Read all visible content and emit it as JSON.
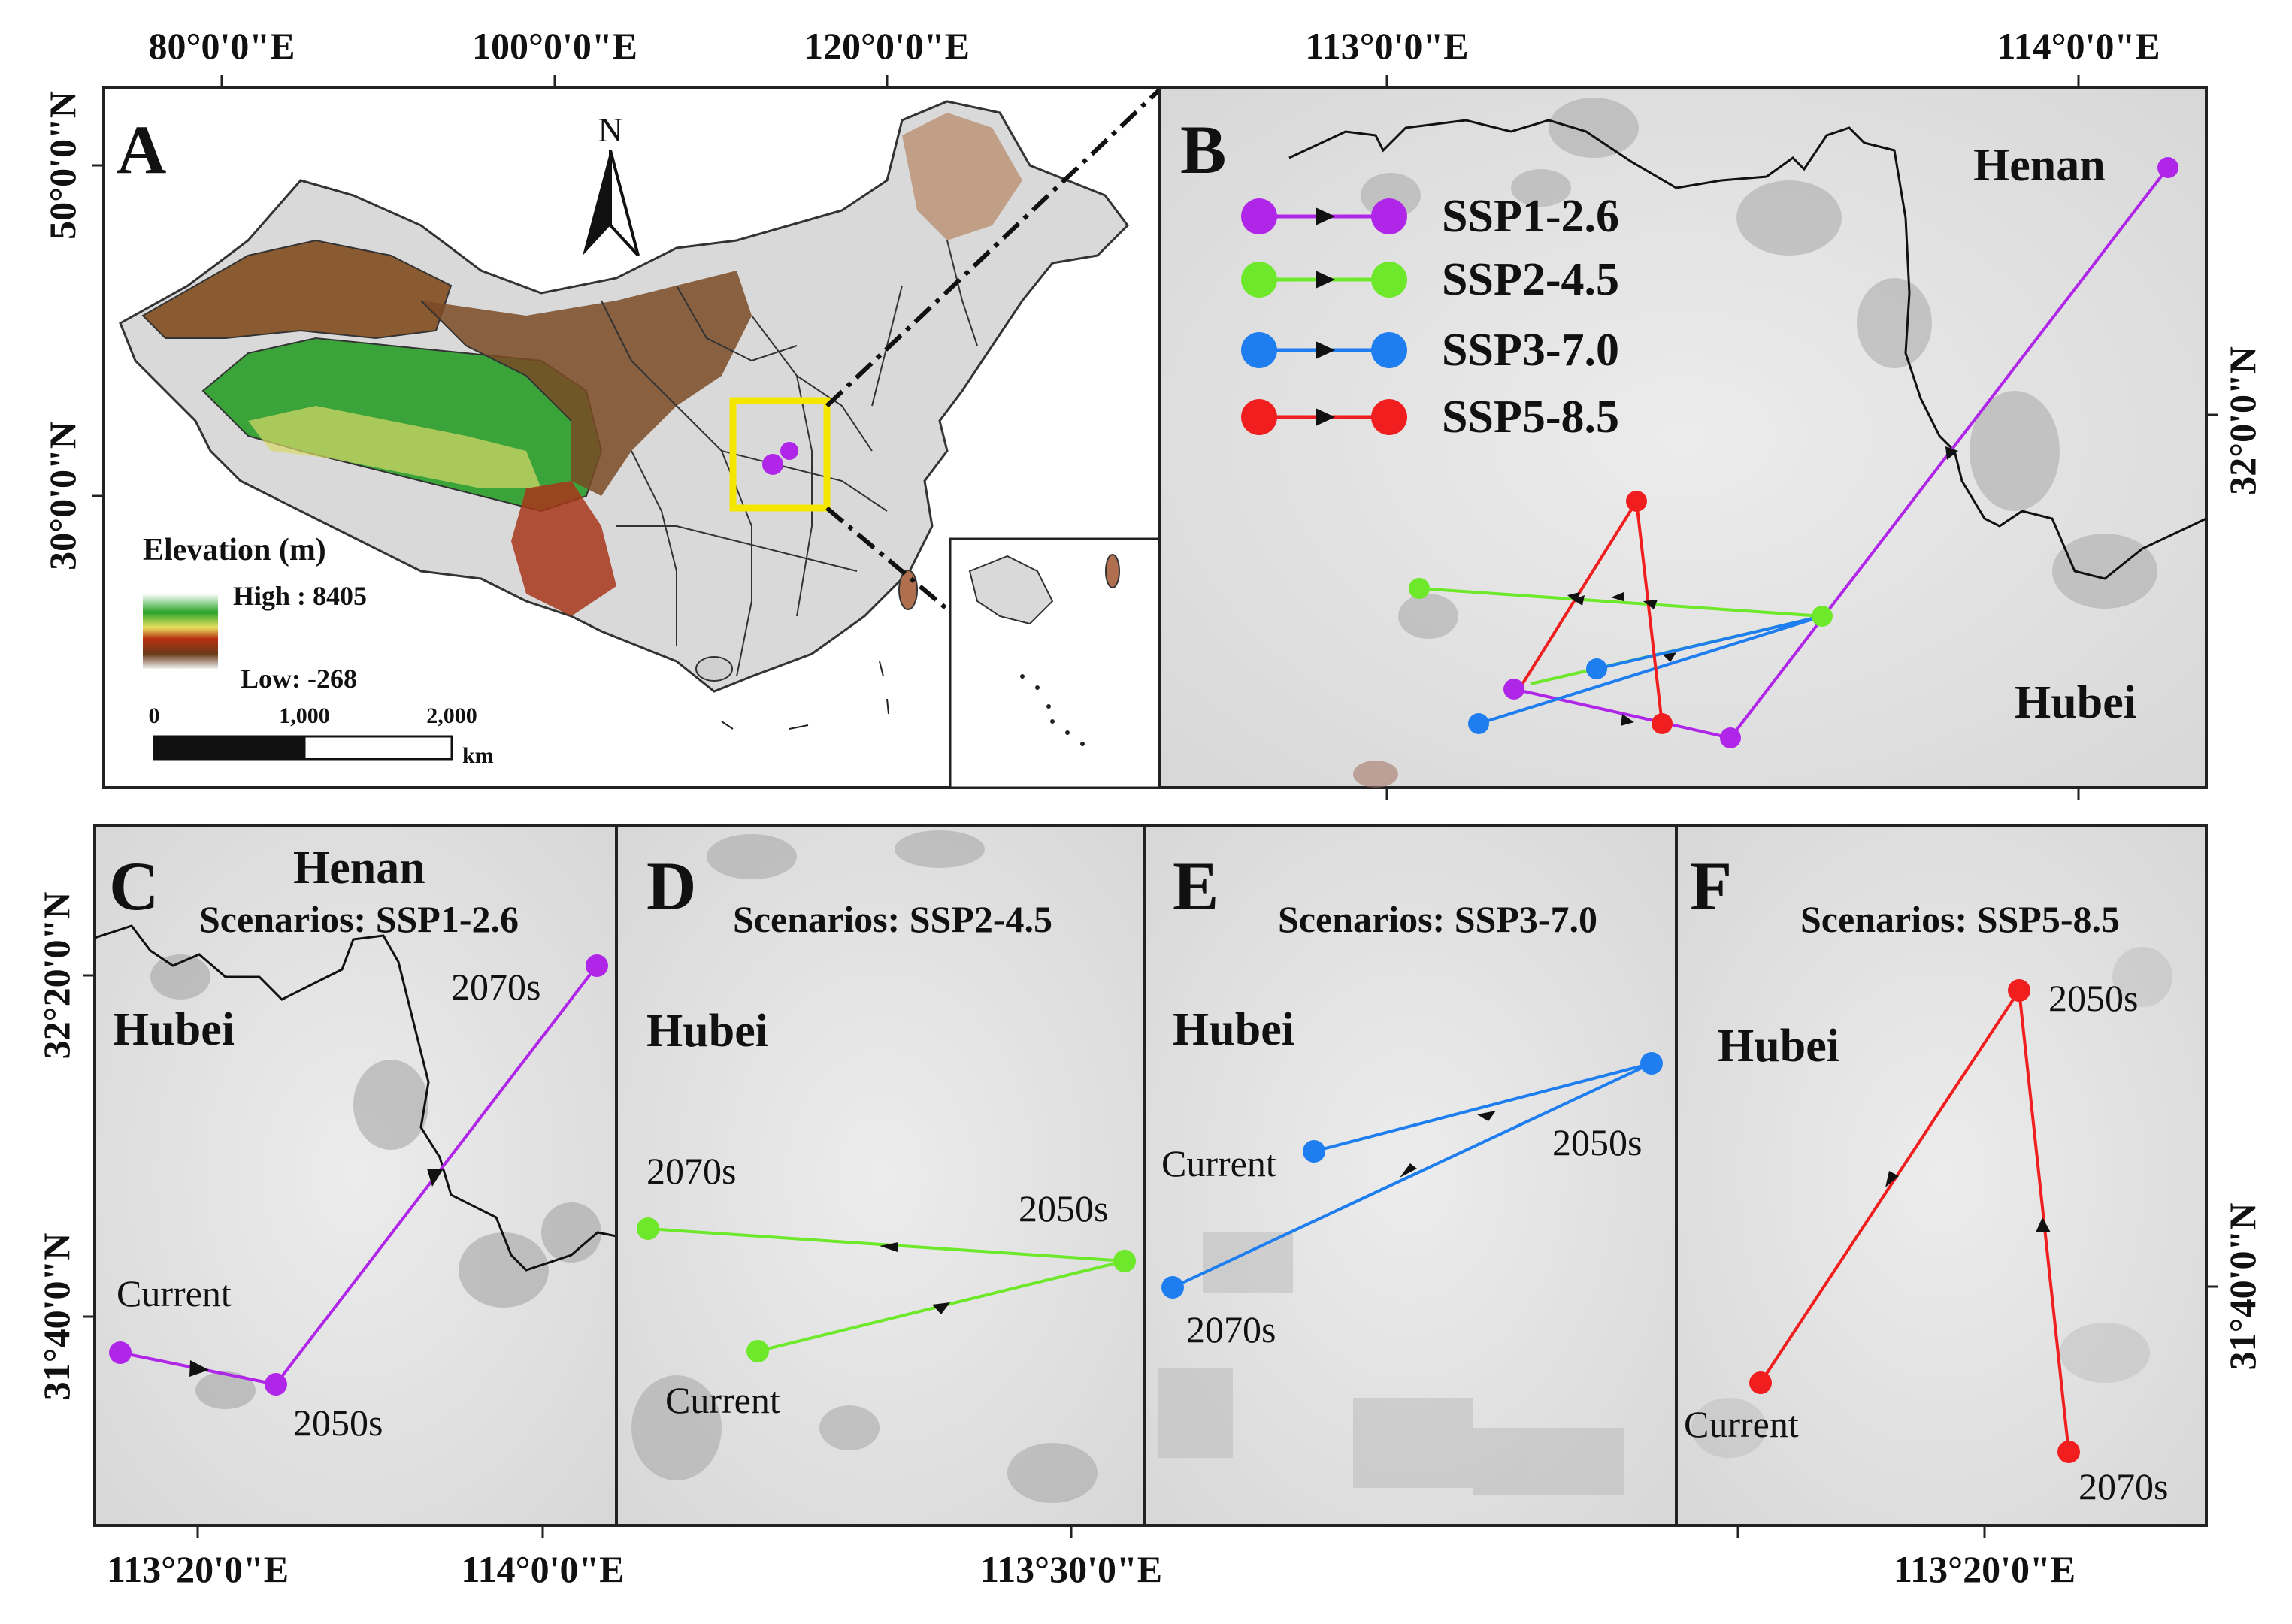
{
  "panels": {
    "A": {
      "letter": "A",
      "north": "N",
      "legend_title": "Elevation (m)",
      "high": "High : 8405",
      "low": "Low: -268",
      "scale": {
        "t0": "0",
        "t1": "1,000",
        "t2": "2,000",
        "unit": "km"
      },
      "x_ticks": [
        "80°0'0\"E",
        "100°0'0\"E",
        "120°0'0\"E"
      ],
      "y_ticks": [
        "50°0'0\"N",
        "30°0'0\"N"
      ]
    },
    "B": {
      "letter": "B",
      "henan": "Henan",
      "hubei": "Hubei",
      "x_ticks": [
        "113°0'0\"E",
        "114°0'0\"E"
      ],
      "y_ticks": [
        "32°0'0\"N"
      ]
    },
    "C": {
      "letter": "C",
      "henan": "Henan",
      "hubei": "Hubei",
      "scenario": "Scenarios: SSP1-2.6",
      "current": "Current",
      "p2050": "2050s",
      "p2070": "2070s"
    },
    "D": {
      "letter": "D",
      "hubei": "Hubei",
      "scenario": "Scenarios: SSP2-4.5",
      "current": "Current",
      "p2050": "2050s",
      "p2070": "2070s"
    },
    "E": {
      "letter": "E",
      "hubei": "Hubei",
      "scenario": "Scenarios: SSP3-7.0",
      "current": "Current",
      "p2050": "2050s",
      "p2070": "2070s"
    },
    "F": {
      "letter": "F",
      "hubei": "Hubei",
      "scenario": "Scenarios: SSP5-8.5",
      "current": "Current",
      "p2050": "2050s",
      "p2070": "2070s"
    }
  },
  "bottom_ticks": [
    "113°20'0\"E",
    "114°0'0\"E",
    "113°30'0\"E",
    "113°20'0\"E"
  ],
  "left_ticks": [
    "32°20'0\"N",
    "31°40'0\"N"
  ],
  "right_ticks": [
    "31°40'0\"N"
  ],
  "legend": [
    {
      "label": "SSP1-2.6",
      "color": "#b026e8"
    },
    {
      "label": "SSP2-4.5",
      "color": "#6ee82a"
    },
    {
      "label": "SSP3-7.0",
      "color": "#1e7ef0"
    },
    {
      "label": "SSP5-8.5",
      "color": "#f01e1e"
    }
  ]
}
